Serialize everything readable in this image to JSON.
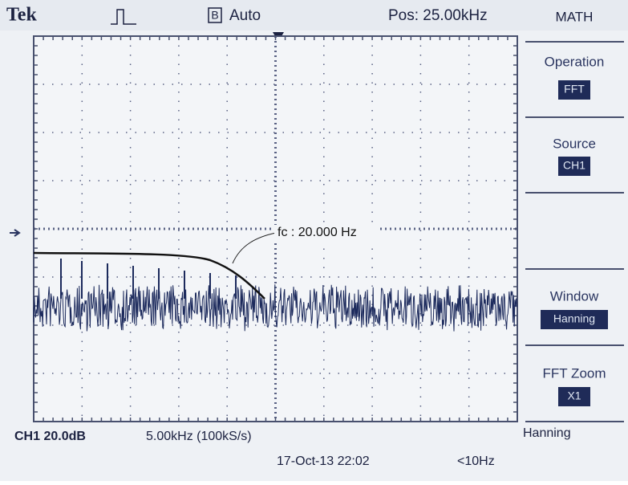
{
  "header": {
    "brand": "Tek",
    "trigger_source": "B",
    "mode": "Auto",
    "position": "Pos: 25.00kHz",
    "menu_title": "MATH"
  },
  "menu": [
    {
      "label": "Operation",
      "value": "FFT"
    },
    {
      "label": "Source",
      "value": "CH1"
    },
    {
      "label": "Window",
      "value": "Hanning"
    },
    {
      "label": "FFT Zoom",
      "value": "X1"
    }
  ],
  "annotation": "fc : 20.000 Hz",
  "status": {
    "channel_scale": "CH1 20.0dB",
    "horizontal_scale": "5.00kHz (100kS/s)",
    "window": "Hanning",
    "datetime": "17-Oct-13 22:02",
    "frequency": "<10Hz"
  }
}
